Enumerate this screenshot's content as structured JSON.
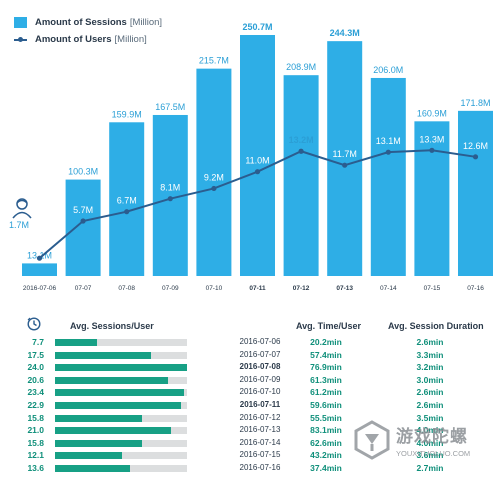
{
  "legend": {
    "sessions_label": "Amount of Sessions",
    "sessions_unit": "[Million]",
    "users_label": "Amount of Users",
    "users_unit": "[Million]"
  },
  "colors": {
    "bar": "#2eaee6",
    "line": "#2b5d8f",
    "table_bar": "#17a085",
    "table_track": "#dcdedf",
    "accent_text": "#0f8f7a"
  },
  "chart_data": {
    "type": "bar",
    "categories": [
      "2016-07-06",
      "07-07",
      "07-08",
      "07-09",
      "07-10",
      "07-11",
      "07-12",
      "07-13",
      "07-14",
      "07-15",
      "07-16"
    ],
    "bold_categories": [
      "07-11",
      "07-12",
      "07-13"
    ],
    "series": [
      {
        "name": "Amount of Sessions [Million]",
        "type": "bar",
        "values": [
          13.1,
          100.3,
          159.9,
          167.5,
          215.7,
          250.7,
          208.9,
          244.3,
          206.0,
          160.9,
          171.8
        ],
        "labels": [
          "13.1M",
          "100.3M",
          "159.9M",
          "167.5M",
          "215.7M",
          "250.7M",
          "208.9M",
          "244.3M",
          "206.0M",
          "160.9M",
          "171.8M"
        ],
        "bold_labels": [
          "250.7M",
          "244.3M"
        ]
      },
      {
        "name": "Amount of Users [Million]",
        "type": "line",
        "values": [
          1.7,
          5.7,
          6.7,
          8.1,
          9.2,
          11.0,
          13.2,
          11.7,
          13.1,
          13.3,
          12.6
        ],
        "labels": [
          "1.7M",
          "5.7M",
          "6.7M",
          "8.1M",
          "9.2M",
          "11.0M",
          "13.2M",
          "11.7M",
          "13.1M",
          "13.3M",
          "12.6M"
        ],
        "bold_labels": [
          "13.2M"
        ]
      }
    ]
  },
  "user_icon": {
    "name": "user-icon",
    "value": "1.7M"
  },
  "table": {
    "icon": "clock-icon",
    "headers": {
      "sessions": "Avg. Sessions/User",
      "time": "Avg. Time/User",
      "duration": "Avg. Session Duration"
    },
    "max_sessions": 24.0,
    "rows": [
      {
        "sessions": "7.7",
        "sessions_value": 7.7,
        "date": "2016-07-06",
        "time": "20.2min",
        "duration": "2.6min",
        "bold": false
      },
      {
        "sessions": "17.5",
        "sessions_value": 17.5,
        "date": "2016-07-07",
        "time": "57.4min",
        "duration": "3.3min",
        "bold": false
      },
      {
        "sessions": "24.0",
        "sessions_value": 24.0,
        "date": "2016-07-08",
        "time": "76.9min",
        "duration": "3.2min",
        "bold": true
      },
      {
        "sessions": "20.6",
        "sessions_value": 20.6,
        "date": "2016-07-09",
        "time": "61.3min",
        "duration": "3.0min",
        "bold": false
      },
      {
        "sessions": "23.4",
        "sessions_value": 23.4,
        "date": "2016-07-10",
        "time": "61.2min",
        "duration": "2.6min",
        "bold": false
      },
      {
        "sessions": "22.9",
        "sessions_value": 22.9,
        "date": "2016-07-11",
        "time": "59.6min",
        "duration": "2.6min",
        "bold": true
      },
      {
        "sessions": "15.8",
        "sessions_value": 15.8,
        "date": "2016-07-12",
        "time": "55.5min",
        "duration": "3.5min",
        "bold": false
      },
      {
        "sessions": "21.0",
        "sessions_value": 21.0,
        "date": "2016-07-13",
        "time": "83.1min",
        "duration": "4.0min",
        "bold": false
      },
      {
        "sessions": "15.8",
        "sessions_value": 15.8,
        "date": "2016-07-14",
        "time": "62.6min",
        "duration": "4.0min",
        "bold": false
      },
      {
        "sessions": "12.1",
        "sessions_value": 12.1,
        "date": "2016-07-15",
        "time": "43.2min",
        "duration": "3.6min",
        "bold": false
      },
      {
        "sessions": "13.6",
        "sessions_value": 13.6,
        "date": "2016-07-16",
        "time": "37.4min",
        "duration": "2.7min",
        "bold": false
      }
    ]
  },
  "watermark": {
    "logo": "youxi-tuoluo-logo",
    "text": "游戏陀螺",
    "url": "YOUXITUOLUO.COM"
  }
}
